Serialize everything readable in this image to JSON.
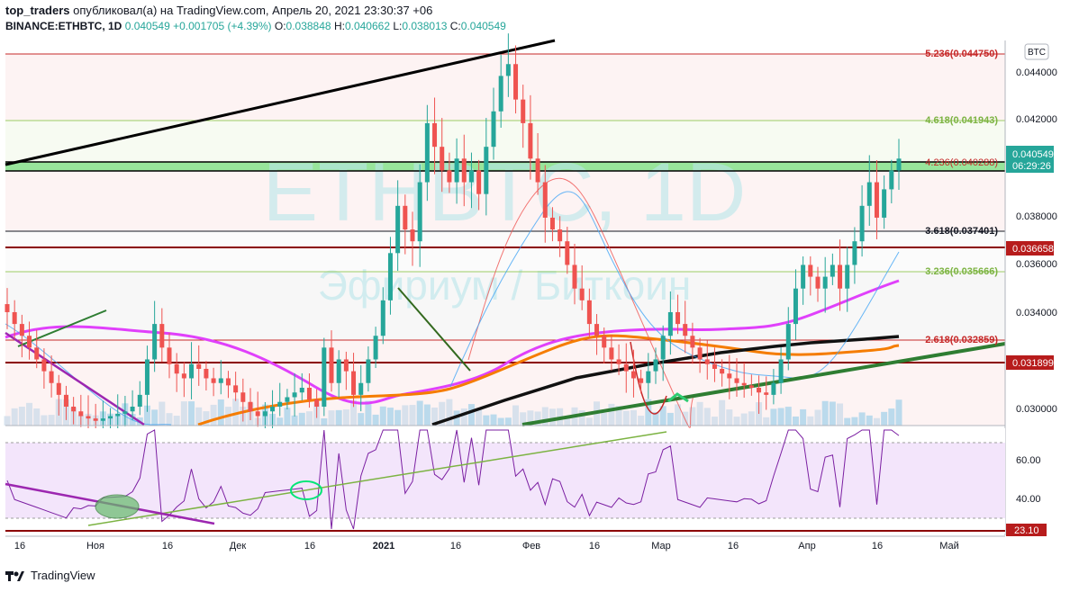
{
  "header": {
    "author": "top_traders",
    "published": "опубликовал(а) на TradingView.com, Апрель 20, 2021 23:30:37 +06",
    "symbol": "BINANCE:ETHBTC, 1D",
    "last": "0.040549",
    "change": "+0.001705 (+4.39%)",
    "o_label": "O:",
    "o": "0.038848",
    "h_label": "H:",
    "h": "0.040662",
    "l_label": "L:",
    "l": "0.038013",
    "c_label": "C:",
    "c": "0.040549"
  },
  "watermark": {
    "title": "ETHBTC, 1D",
    "subtitle": "Эфириум / Биткоин"
  },
  "currency_badge": "BTC",
  "price_axis": [
    "0.044000",
    "0.042000",
    "0.038000",
    "0.036000",
    "0.034000",
    "0.030000"
  ],
  "price_tag": {
    "value": "0.040549",
    "countdown": "06:29:26"
  },
  "level_tags": [
    "0.036658",
    "0.031899"
  ],
  "fib_labels": [
    {
      "text": "5.236(0.044750)",
      "color": "#c62828"
    },
    {
      "text": "4.618(0.041943)",
      "color": "#7cb342"
    },
    {
      "text": "4.236(0.040288)",
      "color": "#c62828"
    },
    {
      "text": "3.618(0.037401)",
      "color": "#131722"
    },
    {
      "text": "3.236(0.035666)",
      "color": "#7cb342"
    },
    {
      "text": "2.618(0.032859)",
      "color": "#c62828"
    }
  ],
  "rsi_axis": [
    "60.00",
    "40.00"
  ],
  "rsi_tag": "23.10",
  "time_axis": [
    "16",
    "Ноя",
    "16",
    "Дек",
    "16",
    "2021",
    "16",
    "Фев",
    "16",
    "Мар",
    "16",
    "Апр",
    "16",
    "Май"
  ],
  "footer": {
    "brand": "TradingView"
  },
  "colors": {
    "up": "#26a69a",
    "down": "#ef5350",
    "magenta": "#e040fb",
    "orange": "#f57c00",
    "green_trend": "#2e7d32"
  },
  "chart_data": {
    "type": "candlestick",
    "ylim": [
      0.0292,
      0.0455
    ],
    "close_series": [
      0.034,
      0.0335,
      0.033,
      0.0325,
      0.032,
      0.0315,
      0.031,
      0.0305,
      0.03,
      0.0298,
      0.0296,
      0.0295,
      0.0294,
      0.0295,
      0.0296,
      0.0297,
      0.0298,
      0.03,
      0.0305,
      0.032,
      0.0335,
      0.0325,
      0.0318,
      0.0314,
      0.0312,
      0.0318,
      0.0316,
      0.0312,
      0.031,
      0.0312,
      0.0309,
      0.0306,
      0.0302,
      0.0298,
      0.0296,
      0.0298,
      0.03,
      0.0302,
      0.0304,
      0.0306,
      0.0308,
      0.0303,
      0.03,
      0.0325,
      0.031,
      0.032,
      0.0315,
      0.0305,
      0.031,
      0.032,
      0.033,
      0.0345,
      0.0365,
      0.0385,
      0.0375,
      0.037,
      0.0395,
      0.042,
      0.041,
      0.04,
      0.0395,
      0.0405,
      0.0395,
      0.04,
      0.039,
      0.041,
      0.0425,
      0.044,
      0.0445,
      0.043,
      0.042,
      0.0405,
      0.0395,
      0.038,
      0.0375,
      0.037,
      0.036,
      0.035,
      0.0345,
      0.0335,
      0.033,
      0.0325,
      0.032,
      0.0318,
      0.0315,
      0.0312,
      0.031,
      0.0315,
      0.032,
      0.033,
      0.034,
      0.0335,
      0.033,
      0.0325,
      0.032,
      0.0318,
      0.0316,
      0.0314,
      0.0312,
      0.031,
      0.0309,
      0.0308,
      0.0306,
      0.0305,
      0.031,
      0.032,
      0.0335,
      0.035,
      0.036,
      0.0355,
      0.035,
      0.0355,
      0.036,
      0.035,
      0.036,
      0.037,
      0.0385,
      0.0395,
      0.038,
      0.0392,
      0.04,
      0.0405
    ]
  }
}
